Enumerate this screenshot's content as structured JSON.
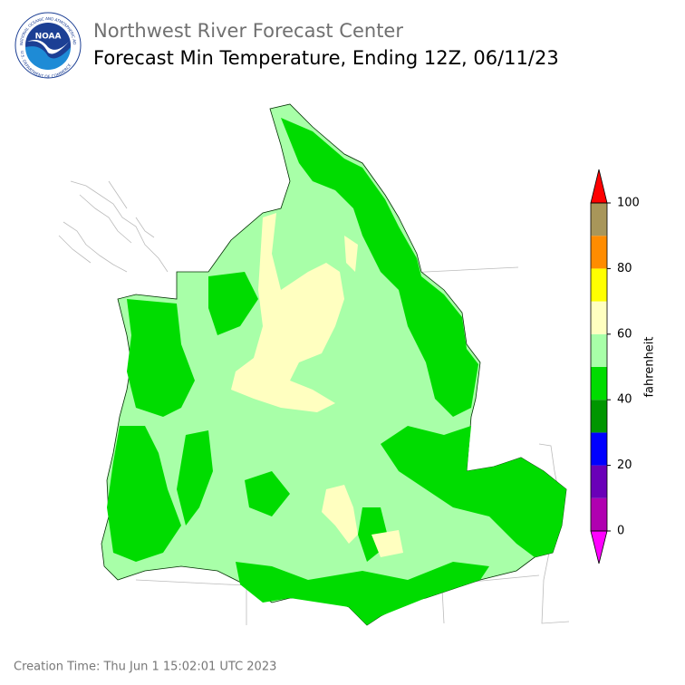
{
  "header": {
    "title": "Northwest River Forecast Center",
    "subtitle": "Forecast Min Temperature, Ending 12Z, 06/11/23"
  },
  "logo": {
    "text": "NOAA",
    "ring_top": "NATIONAL OCEANIC AND ATMOSPHERIC ADMINISTRATION",
    "ring_bottom": "U.S. DEPARTMENT OF COMMERCE"
  },
  "colorbar": {
    "label": "fahrenheit",
    "bounds": [
      0,
      10,
      20,
      30,
      40,
      50,
      60,
      70,
      80,
      90,
      100
    ],
    "colors": [
      "#b000b0",
      "#6a00b8",
      "#0000ff",
      "#009600",
      "#00dc00",
      "#a8ffa8",
      "#ffffc0",
      "#ffff00",
      "#ff8c00",
      "#a8965a"
    ],
    "under_color": "#ff00ff",
    "over_color": "#ff0000",
    "ticks": [
      0,
      20,
      40,
      60,
      80,
      100
    ]
  },
  "footer": {
    "creation_time": "Creation Time: Thu Jun 1 15:02:01 UTC 2023"
  }
}
